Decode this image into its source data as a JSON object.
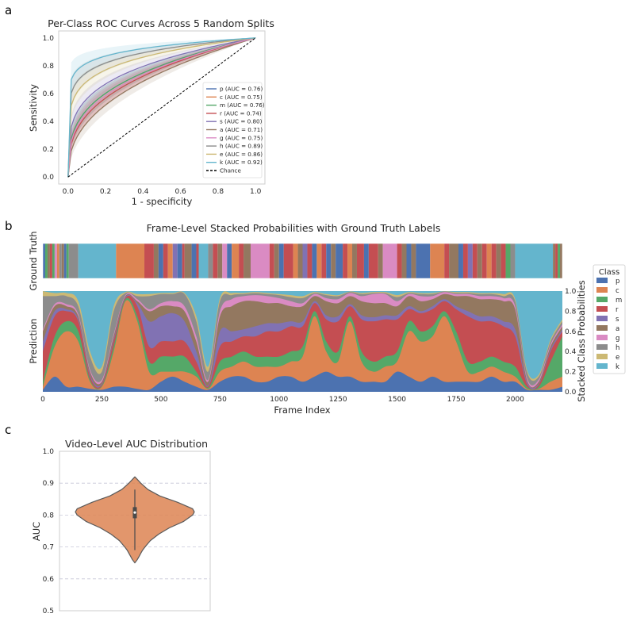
{
  "panels": {
    "a": "a",
    "b": "b",
    "c": "c"
  },
  "chart_data": [
    {
      "id": "roc",
      "type": "line",
      "title": "Per-Class ROC Curves Across 5 Random Splits",
      "xlabel": "1 - specificity",
      "ylabel": "Sensitivity",
      "xlim": [
        -0.05,
        1.05
      ],
      "ylim": [
        -0.05,
        1.05
      ],
      "xticks": [
        "0.0",
        "0.2",
        "0.4",
        "0.6",
        "0.8",
        "1.0"
      ],
      "yticks": [
        "0.0",
        "0.2",
        "0.4",
        "0.6",
        "0.8",
        "1.0"
      ],
      "grid": false,
      "legend_position": "lower-right",
      "series": [
        {
          "name": "p (AUC = 0.76)",
          "auc": 0.76,
          "color": "#4c72b0"
        },
        {
          "name": "c (AUC = 0.75)",
          "auc": 0.75,
          "color": "#dd8452"
        },
        {
          "name": "m (AUC = 0.76)",
          "auc": 0.76,
          "color": "#55a868"
        },
        {
          "name": "r (AUC = 0.74)",
          "auc": 0.74,
          "color": "#c44e52"
        },
        {
          "name": "s (AUC = 0.80)",
          "auc": 0.8,
          "color": "#8172b3"
        },
        {
          "name": "a (AUC = 0.71)",
          "auc": 0.71,
          "color": "#937860"
        },
        {
          "name": "g (AUC = 0.75)",
          "auc": 0.75,
          "color": "#da8bc3"
        },
        {
          "name": "h (AUC = 0.89)",
          "auc": 0.89,
          "color": "#8c8c8c"
        },
        {
          "name": "e (AUC = 0.86)",
          "auc": 0.86,
          "color": "#ccb974"
        },
        {
          "name": "k (AUC = 0.92)",
          "auc": 0.92,
          "color": "#64b5cd"
        }
      ],
      "chance": {
        "name": "Chance",
        "x": [
          0,
          1
        ],
        "y": [
          0,
          1
        ],
        "style": "dashed",
        "color": "#000000"
      }
    },
    {
      "id": "stacked",
      "type": "area",
      "title": "Frame-Level Stacked Probabilities with Ground Truth Labels",
      "xlabel": "Frame Index",
      "ylabel_truth": "Ground Truth",
      "ylabel_pred": "Prediction",
      "ylabel_right": "Stacked Class Probabilities",
      "xlim": [
        0,
        2200
      ],
      "ylim": [
        0,
        1
      ],
      "xticks": [
        "0",
        "250",
        "500",
        "750",
        "1000",
        "1250",
        "1500",
        "1750",
        "2000"
      ],
      "yticks_right": [
        "0.0",
        "0.2",
        "0.4",
        "0.6",
        "0.8",
        "1.0"
      ],
      "legend_title": "Class",
      "classes": [
        "p",
        "c",
        "m",
        "r",
        "s",
        "a",
        "g",
        "h",
        "e",
        "k"
      ],
      "colors": [
        "#4c72b0",
        "#dd8452",
        "#55a868",
        "#c44e52",
        "#8172b3",
        "#937860",
        "#da8bc3",
        "#8c8c8c",
        "#ccb974",
        "#64b5cd"
      ],
      "ground_truth_segments": [
        {
          "start": 0,
          "end": 10,
          "class": "p"
        },
        {
          "start": 10,
          "end": 20,
          "class": "m"
        },
        {
          "start": 20,
          "end": 30,
          "class": "a"
        },
        {
          "start": 30,
          "end": 40,
          "class": "r"
        },
        {
          "start": 40,
          "end": 50,
          "class": "m"
        },
        {
          "start": 50,
          "end": 60,
          "class": "g"
        },
        {
          "start": 60,
          "end": 70,
          "class": "c"
        },
        {
          "start": 70,
          "end": 80,
          "class": "h"
        },
        {
          "start": 80,
          "end": 90,
          "class": "a"
        },
        {
          "start": 90,
          "end": 100,
          "class": "p"
        },
        {
          "start": 100,
          "end": 110,
          "class": "m"
        },
        {
          "start": 110,
          "end": 150,
          "class": "h"
        },
        {
          "start": 150,
          "end": 310,
          "class": "k"
        },
        {
          "start": 310,
          "end": 430,
          "class": "c"
        },
        {
          "start": 430,
          "end": 470,
          "class": "r"
        },
        {
          "start": 470,
          "end": 490,
          "class": "a"
        },
        {
          "start": 490,
          "end": 510,
          "class": "p"
        },
        {
          "start": 510,
          "end": 530,
          "class": "r"
        },
        {
          "start": 530,
          "end": 550,
          "class": "c"
        },
        {
          "start": 550,
          "end": 570,
          "class": "s"
        },
        {
          "start": 570,
          "end": 590,
          "class": "p"
        },
        {
          "start": 590,
          "end": 600,
          "class": "r"
        },
        {
          "start": 600,
          "end": 630,
          "class": "a"
        },
        {
          "start": 630,
          "end": 650,
          "class": "p"
        },
        {
          "start": 650,
          "end": 660,
          "class": "r"
        },
        {
          "start": 660,
          "end": 700,
          "class": "k"
        },
        {
          "start": 700,
          "end": 720,
          "class": "h"
        },
        {
          "start": 720,
          "end": 740,
          "class": "r"
        },
        {
          "start": 740,
          "end": 760,
          "class": "a"
        },
        {
          "start": 760,
          "end": 780,
          "class": "g"
        },
        {
          "start": 780,
          "end": 800,
          "class": "p"
        },
        {
          "start": 800,
          "end": 830,
          "class": "c"
        },
        {
          "start": 830,
          "end": 850,
          "class": "r"
        },
        {
          "start": 850,
          "end": 880,
          "class": "a"
        },
        {
          "start": 880,
          "end": 960,
          "class": "g"
        },
        {
          "start": 960,
          "end": 980,
          "class": "r"
        },
        {
          "start": 980,
          "end": 1000,
          "class": "a"
        },
        {
          "start": 1000,
          "end": 1020,
          "class": "p"
        },
        {
          "start": 1020,
          "end": 1060,
          "class": "r"
        },
        {
          "start": 1060,
          "end": 1080,
          "class": "c"
        },
        {
          "start": 1080,
          "end": 1100,
          "class": "a"
        },
        {
          "start": 1100,
          "end": 1120,
          "class": "s"
        },
        {
          "start": 1120,
          "end": 1140,
          "class": "r"
        },
        {
          "start": 1140,
          "end": 1160,
          "class": "p"
        },
        {
          "start": 1160,
          "end": 1180,
          "class": "c"
        },
        {
          "start": 1180,
          "end": 1200,
          "class": "r"
        },
        {
          "start": 1200,
          "end": 1220,
          "class": "p"
        },
        {
          "start": 1220,
          "end": 1240,
          "class": "a"
        },
        {
          "start": 1240,
          "end": 1270,
          "class": "p"
        },
        {
          "start": 1270,
          "end": 1290,
          "class": "r"
        },
        {
          "start": 1290,
          "end": 1310,
          "class": "c"
        },
        {
          "start": 1310,
          "end": 1330,
          "class": "a"
        },
        {
          "start": 1330,
          "end": 1360,
          "class": "r"
        },
        {
          "start": 1360,
          "end": 1380,
          "class": "p"
        },
        {
          "start": 1380,
          "end": 1420,
          "class": "r"
        },
        {
          "start": 1420,
          "end": 1440,
          "class": "a"
        },
        {
          "start": 1440,
          "end": 1500,
          "class": "g"
        },
        {
          "start": 1500,
          "end": 1520,
          "class": "r"
        },
        {
          "start": 1520,
          "end": 1540,
          "class": "a"
        },
        {
          "start": 1540,
          "end": 1560,
          "class": "p"
        },
        {
          "start": 1560,
          "end": 1580,
          "class": "a"
        },
        {
          "start": 1580,
          "end": 1640,
          "class": "p"
        },
        {
          "start": 1640,
          "end": 1700,
          "class": "c"
        },
        {
          "start": 1700,
          "end": 1720,
          "class": "r"
        },
        {
          "start": 1720,
          "end": 1760,
          "class": "a"
        },
        {
          "start": 1760,
          "end": 1780,
          "class": "p"
        },
        {
          "start": 1780,
          "end": 1800,
          "class": "r"
        },
        {
          "start": 1800,
          "end": 1820,
          "class": "s"
        },
        {
          "start": 1820,
          "end": 1840,
          "class": "r"
        },
        {
          "start": 1840,
          "end": 1860,
          "class": "a"
        },
        {
          "start": 1860,
          "end": 1880,
          "class": "r"
        },
        {
          "start": 1880,
          "end": 1900,
          "class": "c"
        },
        {
          "start": 1900,
          "end": 1920,
          "class": "r"
        },
        {
          "start": 1920,
          "end": 1940,
          "class": "a"
        },
        {
          "start": 1940,
          "end": 1960,
          "class": "r"
        },
        {
          "start": 1960,
          "end": 1980,
          "class": "m"
        },
        {
          "start": 1980,
          "end": 2000,
          "class": "h"
        },
        {
          "start": 2000,
          "end": 2160,
          "class": "k"
        },
        {
          "start": 2160,
          "end": 2170,
          "class": "a"
        },
        {
          "start": 2170,
          "end": 2180,
          "class": "r"
        },
        {
          "start": 2180,
          "end": 2190,
          "class": "m"
        },
        {
          "start": 2190,
          "end": 2200,
          "class": "a"
        }
      ],
      "x_knots": [
        0,
        50,
        100,
        150,
        200,
        250,
        300,
        350,
        400,
        450,
        500,
        550,
        600,
        650,
        700,
        750,
        800,
        850,
        900,
        950,
        1000,
        1050,
        1100,
        1150,
        1200,
        1250,
        1300,
        1350,
        1400,
        1450,
        1500,
        1550,
        1600,
        1650,
        1700,
        1750,
        1800,
        1850,
        1900,
        1950,
        2000,
        2050,
        2100,
        2150,
        2200
      ],
      "stack_boundaries": {
        "p": [
          0.02,
          0.15,
          0.05,
          0.05,
          0.03,
          0.02,
          0.05,
          0.05,
          0.03,
          0.02,
          0.1,
          0.15,
          0.1,
          0.05,
          0.02,
          0.1,
          0.15,
          0.15,
          0.1,
          0.1,
          0.15,
          0.15,
          0.1,
          0.15,
          0.2,
          0.15,
          0.15,
          0.1,
          0.1,
          0.1,
          0.2,
          0.15,
          0.1,
          0.15,
          0.1,
          0.1,
          0.1,
          0.1,
          0.15,
          0.1,
          0.1,
          0.02,
          0.02,
          0.02,
          0.05
        ],
        "c": [
          0.05,
          0.45,
          0.6,
          0.5,
          0.1,
          0.05,
          0.4,
          0.9,
          0.7,
          0.2,
          0.2,
          0.2,
          0.2,
          0.15,
          0.03,
          0.2,
          0.25,
          0.3,
          0.25,
          0.25,
          0.25,
          0.3,
          0.35,
          0.75,
          0.4,
          0.3,
          0.7,
          0.3,
          0.2,
          0.25,
          0.3,
          0.6,
          0.5,
          0.55,
          0.75,
          0.5,
          0.2,
          0.2,
          0.25,
          0.2,
          0.15,
          0.03,
          0.03,
          0.1,
          0.15
        ],
        "m": [
          0.1,
          0.55,
          0.7,
          0.6,
          0.12,
          0.06,
          0.45,
          0.92,
          0.75,
          0.3,
          0.35,
          0.35,
          0.35,
          0.2,
          0.04,
          0.3,
          0.35,
          0.4,
          0.35,
          0.35,
          0.35,
          0.4,
          0.45,
          0.8,
          0.5,
          0.4,
          0.75,
          0.4,
          0.3,
          0.35,
          0.4,
          0.7,
          0.6,
          0.65,
          0.8,
          0.6,
          0.3,
          0.3,
          0.35,
          0.3,
          0.25,
          0.05,
          0.05,
          0.3,
          0.55
        ],
        "r": [
          0.4,
          0.75,
          0.8,
          0.7,
          0.15,
          0.07,
          0.5,
          0.93,
          0.85,
          0.45,
          0.5,
          0.5,
          0.5,
          0.3,
          0.05,
          0.45,
          0.5,
          0.55,
          0.55,
          0.6,
          0.6,
          0.65,
          0.65,
          0.88,
          0.72,
          0.7,
          0.85,
          0.72,
          0.7,
          0.72,
          0.72,
          0.82,
          0.78,
          0.82,
          0.9,
          0.82,
          0.75,
          0.7,
          0.7,
          0.65,
          0.55,
          0.08,
          0.07,
          0.4,
          0.6
        ],
        "s": [
          0.5,
          0.8,
          0.82,
          0.72,
          0.17,
          0.08,
          0.52,
          0.94,
          0.88,
          0.7,
          0.75,
          0.78,
          0.7,
          0.4,
          0.06,
          0.6,
          0.6,
          0.62,
          0.65,
          0.68,
          0.68,
          0.7,
          0.7,
          0.9,
          0.76,
          0.75,
          0.87,
          0.76,
          0.74,
          0.76,
          0.76,
          0.85,
          0.8,
          0.85,
          0.92,
          0.85,
          0.8,
          0.75,
          0.75,
          0.7,
          0.62,
          0.1,
          0.08,
          0.42,
          0.62
        ],
        "a": [
          0.6,
          0.85,
          0.85,
          0.75,
          0.2,
          0.1,
          0.55,
          0.95,
          0.9,
          0.8,
          0.85,
          0.85,
          0.8,
          0.5,
          0.1,
          0.75,
          0.85,
          0.9,
          0.9,
          0.88,
          0.88,
          0.85,
          0.85,
          0.95,
          0.9,
          0.88,
          0.95,
          0.9,
          0.88,
          0.88,
          0.85,
          0.95,
          0.9,
          0.92,
          0.97,
          0.95,
          0.95,
          0.92,
          0.92,
          0.9,
          0.82,
          0.12,
          0.1,
          0.45,
          0.65
        ],
        "g": [
          0.62,
          0.87,
          0.87,
          0.77,
          0.22,
          0.12,
          0.57,
          0.96,
          0.92,
          0.82,
          0.88,
          0.9,
          0.85,
          0.55,
          0.12,
          0.8,
          0.92,
          0.95,
          0.96,
          0.95,
          0.93,
          0.9,
          0.88,
          0.97,
          0.93,
          0.92,
          0.98,
          0.95,
          0.97,
          0.97,
          0.9,
          0.97,
          0.95,
          0.95,
          0.99,
          0.97,
          0.97,
          0.95,
          0.95,
          0.93,
          0.85,
          0.14,
          0.12,
          0.47,
          0.67
        ],
        "h": [
          0.95,
          0.95,
          0.95,
          0.85,
          0.35,
          0.2,
          0.8,
          0.98,
          0.95,
          0.95,
          0.97,
          0.97,
          0.97,
          0.7,
          0.2,
          0.9,
          0.96,
          0.97,
          0.98,
          0.97,
          0.96,
          0.94,
          0.93,
          0.98,
          0.96,
          0.95,
          0.99,
          0.97,
          0.98,
          0.98,
          0.94,
          0.98,
          0.97,
          0.97,
          0.995,
          0.98,
          0.98,
          0.97,
          0.97,
          0.95,
          0.9,
          0.2,
          0.15,
          0.5,
          0.7
        ],
        "e": [
          1.0,
          0.98,
          0.98,
          0.9,
          0.4,
          0.25,
          0.85,
          0.99,
          0.97,
          0.97,
          0.98,
          0.98,
          0.98,
          0.75,
          0.25,
          0.93,
          0.98,
          0.98,
          0.99,
          0.98,
          0.97,
          0.96,
          0.95,
          0.99,
          0.97,
          0.96,
          0.995,
          0.98,
          0.99,
          0.99,
          0.96,
          0.99,
          0.98,
          0.98,
          0.998,
          0.99,
          0.99,
          0.98,
          0.98,
          0.97,
          0.92,
          0.22,
          0.17,
          0.52,
          0.72
        ]
      }
    },
    {
      "id": "violin",
      "type": "violin",
      "title": "Video-Level AUC Distribution",
      "ylabel": "AUC",
      "ylim": [
        0.5,
        1.0
      ],
      "yticks": [
        "0.5",
        "0.6",
        "0.7",
        "0.8",
        "0.9",
        "1.0"
      ],
      "grid": "dashed-horizontal",
      "color": "#dd8452",
      "min": 0.65,
      "max": 0.92,
      "whisker_low": 0.69,
      "whisker_high": 0.88,
      "q1": 0.79,
      "q3": 0.825,
      "median": 0.808,
      "density": [
        {
          "y": 0.65,
          "w": 0.0
        },
        {
          "y": 0.66,
          "w": 0.04
        },
        {
          "y": 0.67,
          "w": 0.07
        },
        {
          "y": 0.68,
          "w": 0.1
        },
        {
          "y": 0.69,
          "w": 0.13
        },
        {
          "y": 0.7,
          "w": 0.17
        },
        {
          "y": 0.72,
          "w": 0.26
        },
        {
          "y": 0.74,
          "w": 0.4
        },
        {
          "y": 0.76,
          "w": 0.58
        },
        {
          "y": 0.78,
          "w": 0.82
        },
        {
          "y": 0.8,
          "w": 0.97
        },
        {
          "y": 0.81,
          "w": 1.0
        },
        {
          "y": 0.82,
          "w": 0.97
        },
        {
          "y": 0.84,
          "w": 0.72
        },
        {
          "y": 0.86,
          "w": 0.42
        },
        {
          "y": 0.88,
          "w": 0.22
        },
        {
          "y": 0.9,
          "w": 0.1
        },
        {
          "y": 0.91,
          "w": 0.05
        },
        {
          "y": 0.92,
          "w": 0.0
        }
      ]
    }
  ]
}
